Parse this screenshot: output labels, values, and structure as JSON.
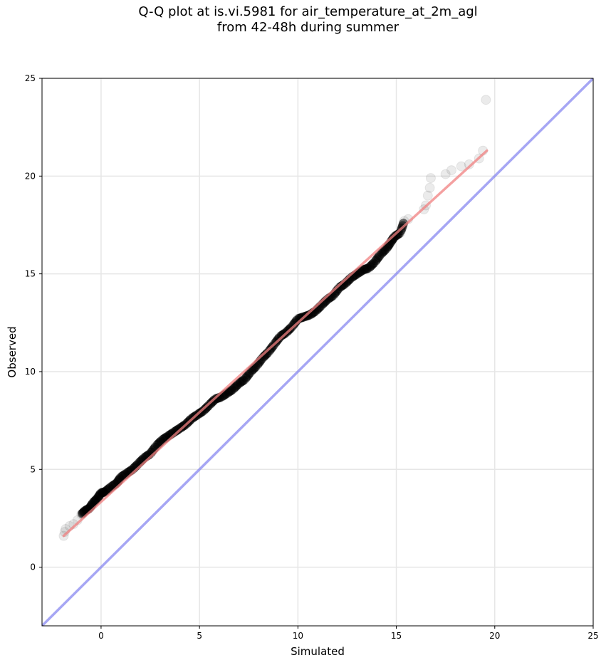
{
  "chart_data": {
    "type": "scatter",
    "title_line1": "Q-Q plot at is.vi.5981 for air_temperature_at_2m_agl",
    "title_line2": "from 42-48h during summer",
    "xlabel": "Simulated",
    "ylabel": "Observed",
    "xlim": [
      -3,
      25
    ],
    "ylim": [
      -3,
      25
    ],
    "xticks": [
      0,
      5,
      10,
      15,
      20,
      25
    ],
    "yticks": [
      0,
      5,
      10,
      15,
      20,
      25
    ],
    "grid": true,
    "colors": {
      "points": "#000000",
      "fit_line": "#f08080",
      "identity_line": "#8080f0",
      "grid": "#e6e6e6"
    },
    "identity_line": {
      "x": [
        -3,
        25
      ],
      "y": [
        -3,
        25
      ]
    },
    "fit_line": {
      "x": [
        -1.9,
        19.6
      ],
      "y": [
        1.6,
        21.3
      ]
    },
    "points": {
      "x": [
        -1.9,
        -1.85,
        -1.8,
        -1.6,
        -1.4,
        -1.2,
        -1.0,
        -0.8,
        -0.6,
        -0.4,
        -0.2,
        0.0,
        0.2,
        0.5,
        0.8,
        1.0,
        1.3,
        1.6,
        1.9,
        2.2,
        2.5,
        2.8,
        3.1,
        3.4,
        3.7,
        4.0,
        4.3,
        4.6,
        4.9,
        5.2,
        5.5,
        5.8,
        6.1,
        6.4,
        6.7,
        7.0,
        7.3,
        7.6,
        7.9,
        8.2,
        8.5,
        8.8,
        9.1,
        9.4,
        9.7,
        10.0,
        10.3,
        10.6,
        10.9,
        11.2,
        11.5,
        11.8,
        12.1,
        12.4,
        12.7,
        13.0,
        13.3,
        13.6,
        13.9,
        14.2,
        14.5,
        14.7,
        14.9,
        15.2,
        15.4,
        15.6,
        16.4,
        16.5,
        16.6,
        16.7,
        16.75,
        17.5,
        17.8,
        18.3,
        18.7,
        19.2,
        19.4,
        19.55
      ],
      "y": [
        1.6,
        1.8,
        1.95,
        2.1,
        2.2,
        2.4,
        2.7,
        2.9,
        3.0,
        3.3,
        3.5,
        3.8,
        3.85,
        4.1,
        4.3,
        4.6,
        4.8,
        5.0,
        5.3,
        5.6,
        5.8,
        6.2,
        6.5,
        6.7,
        6.9,
        7.1,
        7.3,
        7.6,
        7.8,
        8.0,
        8.3,
        8.6,
        8.7,
        8.9,
        9.1,
        9.4,
        9.6,
        10.0,
        10.3,
        10.7,
        11.0,
        11.4,
        11.8,
        12.0,
        12.3,
        12.7,
        12.8,
        12.9,
        13.1,
        13.4,
        13.7,
        13.9,
        14.3,
        14.5,
        14.8,
        15.0,
        15.2,
        15.3,
        15.6,
        16.0,
        16.3,
        16.6,
        16.9,
        17.1,
        17.7,
        17.8,
        18.3,
        18.5,
        19.0,
        19.4,
        19.9,
        20.1,
        20.3,
        20.5,
        20.6,
        20.9,
        21.3,
        23.9
      ]
    }
  }
}
